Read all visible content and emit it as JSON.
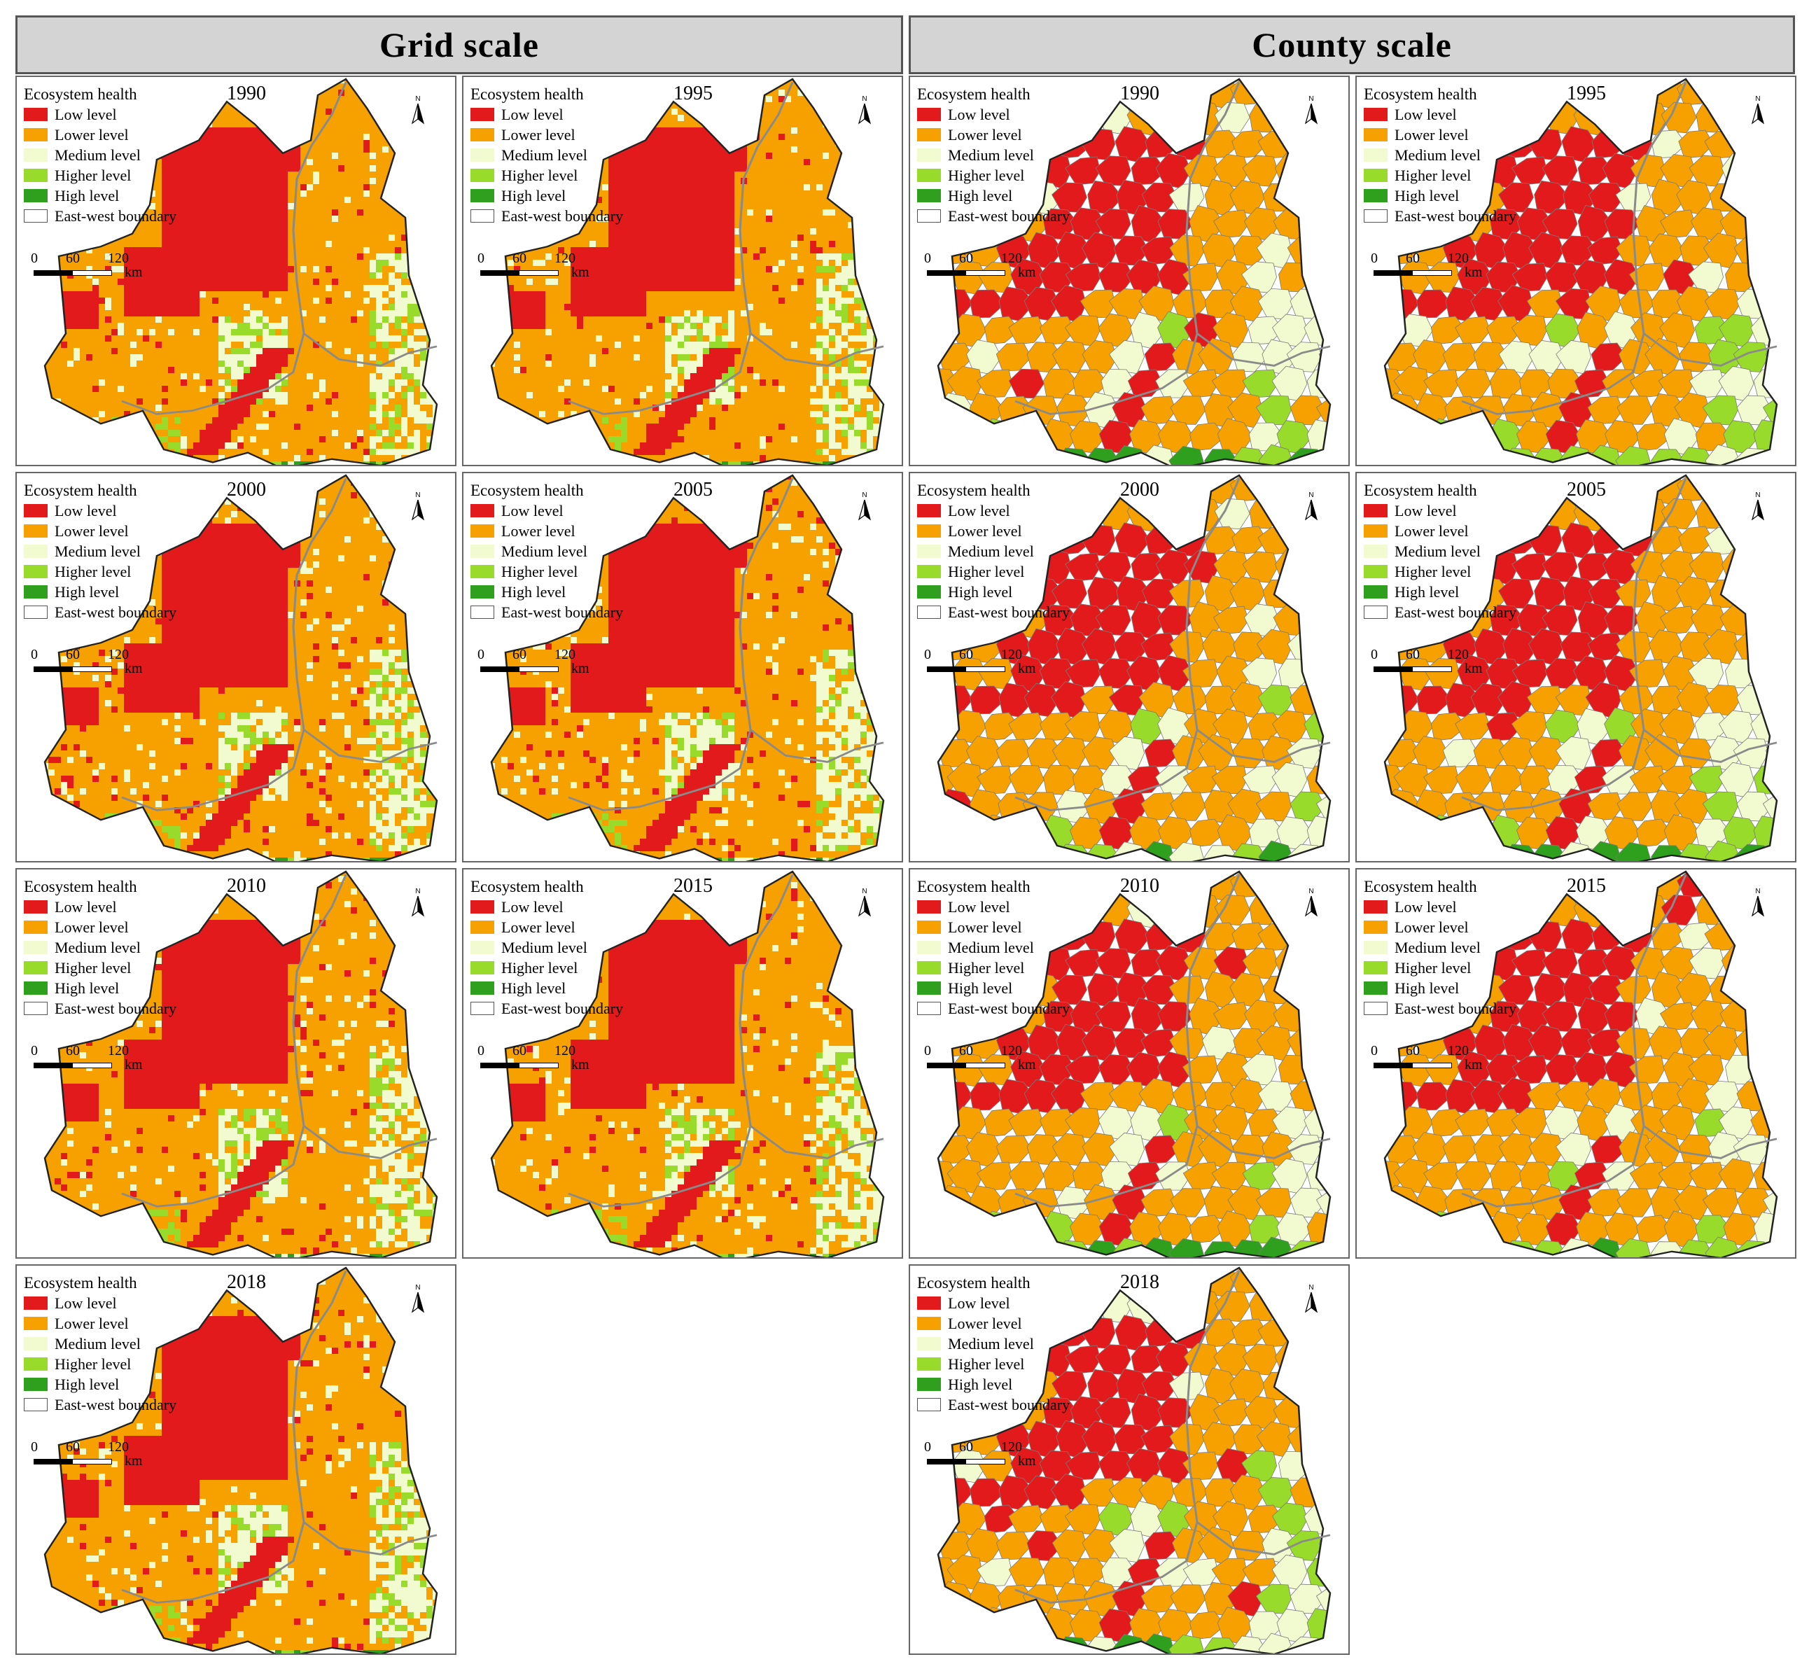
{
  "headers": {
    "left": "Grid  scale",
    "right": "County  scale"
  },
  "legend": {
    "title": "Ecosystem health",
    "items": [
      {
        "label": "Low level",
        "color": "#e31a1c"
      },
      {
        "label": "Lower level",
        "color": "#f6a100"
      },
      {
        "label": "Medium level",
        "color": "#f2fbd0"
      },
      {
        "label": "Higher level",
        "color": "#98db2a"
      },
      {
        "label": "High level",
        "color": "#2fa01d"
      },
      {
        "label": "East-west boundary",
        "color": "#ffffff"
      }
    ]
  },
  "scale_bar": {
    "n0": "0",
    "n1": "60",
    "n2": "120",
    "unit": "km"
  },
  "north_label": "N",
  "panels": [
    {
      "year": "1990",
      "scale": "grid"
    },
    {
      "year": "1995",
      "scale": "grid"
    },
    {
      "year": "1990",
      "scale": "county"
    },
    {
      "year": "1995",
      "scale": "county"
    },
    {
      "year": "2000",
      "scale": "grid"
    },
    {
      "year": "2005",
      "scale": "grid"
    },
    {
      "year": "2000",
      "scale": "county"
    },
    {
      "year": "2005",
      "scale": "county"
    },
    {
      "year": "2010",
      "scale": "grid"
    },
    {
      "year": "2015",
      "scale": "grid"
    },
    {
      "year": "2010",
      "scale": "county"
    },
    {
      "year": "2015",
      "scale": "county"
    },
    {
      "year": "2018",
      "scale": "grid"
    },
    {
      "year": "2018",
      "scale": "county"
    }
  ]
}
